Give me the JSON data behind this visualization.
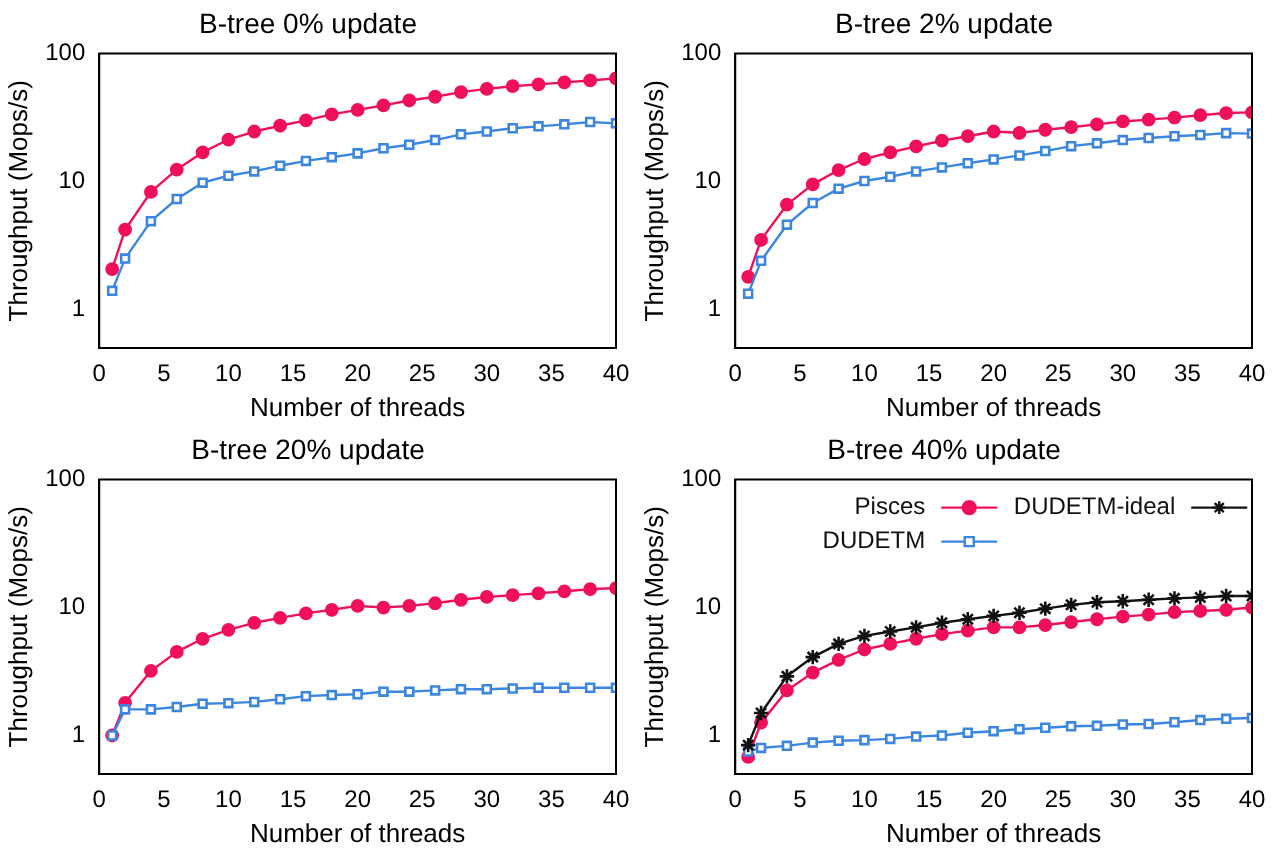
{
  "chart_data": [
    {
      "type": "line",
      "title": "B-tree 0% update",
      "xlabel": "Number of threads",
      "ylabel": "Throughput (Mops/s)",
      "log": "y",
      "grid": false,
      "legend": false,
      "xlim": [
        0,
        40
      ],
      "xticks": [
        0,
        5,
        10,
        15,
        20,
        25,
        30,
        35,
        40
      ],
      "ylim": [
        0.5,
        100
      ],
      "yticks": [
        1,
        10,
        100
      ],
      "x": [
        1,
        2,
        4,
        6,
        8,
        10,
        12,
        14,
        16,
        18,
        20,
        22,
        24,
        26,
        28,
        30,
        32,
        34,
        36,
        38,
        40
      ],
      "series": [
        {
          "color": "#f0105a",
          "marker": "circle",
          "values": [
            2.07,
            4.2,
            8.3,
            12.4,
            16.9,
            21.3,
            24.6,
            27.3,
            30.1,
            33.5,
            36.3,
            39.4,
            43,
            46,
            50,
            53,
            55.6,
            57.5,
            59.6,
            61.7,
            64
          ]
        },
        {
          "color": "#3a86e0",
          "marker": "square",
          "values": [
            1.4,
            2.5,
            4.9,
            7.3,
            9.8,
            11.1,
            12.0,
            13.3,
            14.5,
            15.5,
            16.6,
            18.2,
            19.4,
            21.1,
            23.4,
            24.6,
            26.1,
            27.0,
            28.0,
            29.2,
            28.5
          ]
        }
      ]
    },
    {
      "type": "line",
      "title": "B-tree 2% update",
      "xlabel": "Number of threads",
      "ylabel": "Throughput (Mops/s)",
      "log": "y",
      "grid": false,
      "legend": false,
      "xlim": [
        0,
        40
      ],
      "xticks": [
        0,
        5,
        10,
        15,
        20,
        25,
        30,
        35,
        40
      ],
      "ylim": [
        0.5,
        100
      ],
      "yticks": [
        1,
        10,
        100
      ],
      "x": [
        1,
        2,
        4,
        6,
        8,
        10,
        12,
        14,
        16,
        18,
        20,
        22,
        24,
        26,
        28,
        30,
        32,
        34,
        36,
        38,
        40
      ],
      "series": [
        {
          "color": "#f0105a",
          "marker": "circle",
          "values": [
            1.8,
            3.5,
            6.6,
            9.5,
            12.3,
            15,
            16.9,
            18.8,
            20.9,
            22.6,
            24.6,
            24,
            25.4,
            26.6,
            28,
            29.5,
            30.5,
            31.6,
            33,
            34.3,
            34.7
          ]
        },
        {
          "color": "#3a86e0",
          "marker": "square",
          "values": [
            1.33,
            2.4,
            4.6,
            6.8,
            8.8,
            10.1,
            10.9,
            12.0,
            12.9,
            13.9,
            14.9,
            16.0,
            17.3,
            18.9,
            19.9,
            21.1,
            21.9,
            22.6,
            23.1,
            23.9,
            23.7
          ]
        }
      ]
    },
    {
      "type": "line",
      "title": "B-tree 20% update",
      "xlabel": "Number of threads",
      "ylabel": "Throughput (Mops/s)",
      "log": "y",
      "grid": false,
      "legend": false,
      "xlim": [
        0,
        40
      ],
      "xticks": [
        0,
        5,
        10,
        15,
        20,
        25,
        30,
        35,
        40
      ],
      "ylim": [
        0.5,
        100
      ],
      "yticks": [
        1,
        10,
        100
      ],
      "x": [
        1,
        2,
        4,
        6,
        8,
        10,
        12,
        14,
        16,
        18,
        20,
        22,
        24,
        26,
        28,
        30,
        32,
        34,
        36,
        38,
        40
      ],
      "series": [
        {
          "color": "#f0105a",
          "marker": "circle",
          "values": [
            1.0,
            1.8,
            3.2,
            4.5,
            5.7,
            6.7,
            7.6,
            8.3,
            9.0,
            9.6,
            10.3,
            10,
            10.3,
            10.8,
            11.5,
            12.1,
            12.5,
            12.9,
            13.4,
            13.9,
            14.2
          ]
        },
        {
          "color": "#3a86e0",
          "marker": "square",
          "values": [
            1.0,
            1.6,
            1.6,
            1.67,
            1.77,
            1.79,
            1.83,
            1.92,
            2.03,
            2.07,
            2.1,
            2.2,
            2.2,
            2.25,
            2.3,
            2.3,
            2.33,
            2.36,
            2.36,
            2.36,
            2.36
          ]
        }
      ]
    },
    {
      "type": "line",
      "title": "B-tree 40% update",
      "xlabel": "Number of threads",
      "ylabel": "Throughput (Mops/s)",
      "log": "y",
      "grid": false,
      "legend": "top",
      "xlim": [
        0,
        40
      ],
      "xticks": [
        0,
        5,
        10,
        15,
        20,
        25,
        30,
        35,
        40
      ],
      "ylim": [
        0.5,
        100
      ],
      "yticks": [
        1,
        10,
        100
      ],
      "x": [
        1,
        2,
        4,
        6,
        8,
        10,
        12,
        14,
        16,
        18,
        20,
        22,
        24,
        26,
        28,
        30,
        32,
        34,
        36,
        38,
        40
      ],
      "series": [
        {
          "name": "Pisces",
          "color": "#f0105a",
          "marker": "circle",
          "values": [
            0.68,
            1.26,
            2.25,
            3.1,
            3.9,
            4.7,
            5.2,
            5.7,
            6.2,
            6.6,
            7.0,
            7.0,
            7.3,
            7.7,
            8.1,
            8.5,
            8.8,
            9.2,
            9.4,
            9.6,
            10.0
          ]
        },
        {
          "name": "DUDETM",
          "color": "#3a86e0",
          "marker": "square",
          "values": [
            0.75,
            0.8,
            0.83,
            0.88,
            0.91,
            0.92,
            0.94,
            0.98,
            1.0,
            1.05,
            1.08,
            1.12,
            1.15,
            1.18,
            1.19,
            1.22,
            1.23,
            1.27,
            1.32,
            1.35,
            1.37
          ]
        },
        {
          "name": "DUDETM-ideal",
          "color": "#111111",
          "marker": "cross",
          "values": [
            0.84,
            1.5,
            2.9,
            4.1,
            5.2,
            6.0,
            6.5,
            7.0,
            7.6,
            8.1,
            8.6,
            9.1,
            9.8,
            10.5,
            11.0,
            11.2,
            11.5,
            11.8,
            12.0,
            12.3,
            12.3
          ]
        }
      ]
    }
  ]
}
